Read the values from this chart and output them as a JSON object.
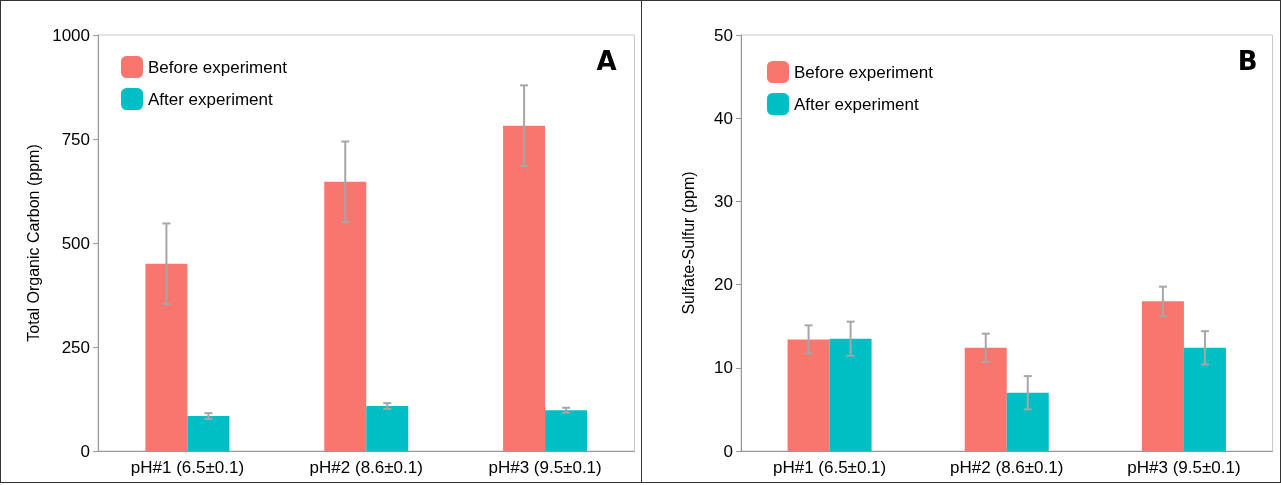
{
  "chart_data": [
    {
      "type": "bar",
      "title": "A",
      "ylabel": "Total Organic Carbon (ppm)",
      "categories": [
        "pH#1 (6.5±0.1)",
        "pH#2 (8.6±0.1)",
        "pH#3 (9.5±0.1)"
      ],
      "series": [
        {
          "name": "Before experiment",
          "color": "#f8766d",
          "values": [
            450,
            647,
            782
          ],
          "errors": [
            97,
            97,
            97
          ]
        },
        {
          "name": "After experiment",
          "color": "#00bfc4",
          "values": [
            84,
            108,
            98
          ],
          "errors": [
            7,
            7,
            6
          ]
        }
      ],
      "ylim": [
        0,
        1000
      ],
      "yticks": [
        0,
        250,
        500,
        750,
        1000
      ],
      "grid": false,
      "legend": "top left"
    },
    {
      "type": "bar",
      "title": "B",
      "ylabel": "Sulfate-Sulfur (ppm)",
      "categories": [
        "pH#1 (6.5±0.1)",
        "pH#2 (8.6±0.1)",
        "pH#3 (9.5±0.1)"
      ],
      "series": [
        {
          "name": "Before experiment",
          "color": "#f8766d",
          "values": [
            13.4,
            12.4,
            18.0
          ],
          "errors": [
            1.7,
            1.7,
            1.75
          ]
        },
        {
          "name": "After experiment",
          "color": "#00bfc4",
          "values": [
            13.5,
            7.0,
            12.4
          ],
          "errors": [
            2.05,
            2.0,
            2.0
          ]
        }
      ],
      "ylim": [
        0,
        50
      ],
      "yticks": [
        0,
        10,
        20,
        30,
        40,
        50
      ],
      "grid": false,
      "legend": "top left"
    }
  ]
}
